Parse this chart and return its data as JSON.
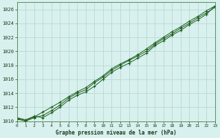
{
  "title": "Graphe pression niveau de la mer (hPa)",
  "background_color": "#d8f0ee",
  "grid_color": "#b8d8d4",
  "line_color": "#1a5c1a",
  "marker_color": "#1a5c1a",
  "xlim": [
    0,
    23
  ],
  "ylim": [
    1010,
    1027
  ],
  "yticks": [
    1010,
    1012,
    1014,
    1016,
    1018,
    1020,
    1022,
    1024,
    1026
  ],
  "xticks": [
    0,
    1,
    2,
    3,
    4,
    5,
    6,
    7,
    8,
    9,
    10,
    11,
    12,
    13,
    14,
    15,
    16,
    17,
    18,
    19,
    20,
    21,
    22,
    23
  ],
  "series": [
    [
      1010.5,
      1010.2,
      1010.7,
      1010.5,
      1011.2,
      1012.0,
      1013.0,
      1013.7,
      1014.2,
      1015.0,
      1016.0,
      1017.0,
      1017.7,
      1018.3,
      1019.0,
      1019.7,
      1020.8,
      1021.5,
      1022.3,
      1023.0,
      1023.8,
      1024.5,
      1025.3,
      1026.5
    ],
    [
      1010.3,
      1010.0,
      1010.5,
      1010.8,
      1011.5,
      1012.3,
      1013.3,
      1014.0,
      1014.5,
      1015.5,
      1016.3,
      1017.3,
      1018.0,
      1018.7,
      1019.3,
      1020.0,
      1021.0,
      1021.8,
      1022.5,
      1023.3,
      1024.0,
      1024.8,
      1025.5,
      1026.3
    ],
    [
      1010.4,
      1010.1,
      1010.6,
      1011.3,
      1012.0,
      1012.7,
      1013.5,
      1014.2,
      1014.8,
      1015.7,
      1016.5,
      1017.5,
      1018.2,
      1018.8,
      1019.5,
      1020.3,
      1021.2,
      1022.0,
      1022.8,
      1023.5,
      1024.3,
      1025.0,
      1025.8,
      1026.5
    ]
  ]
}
